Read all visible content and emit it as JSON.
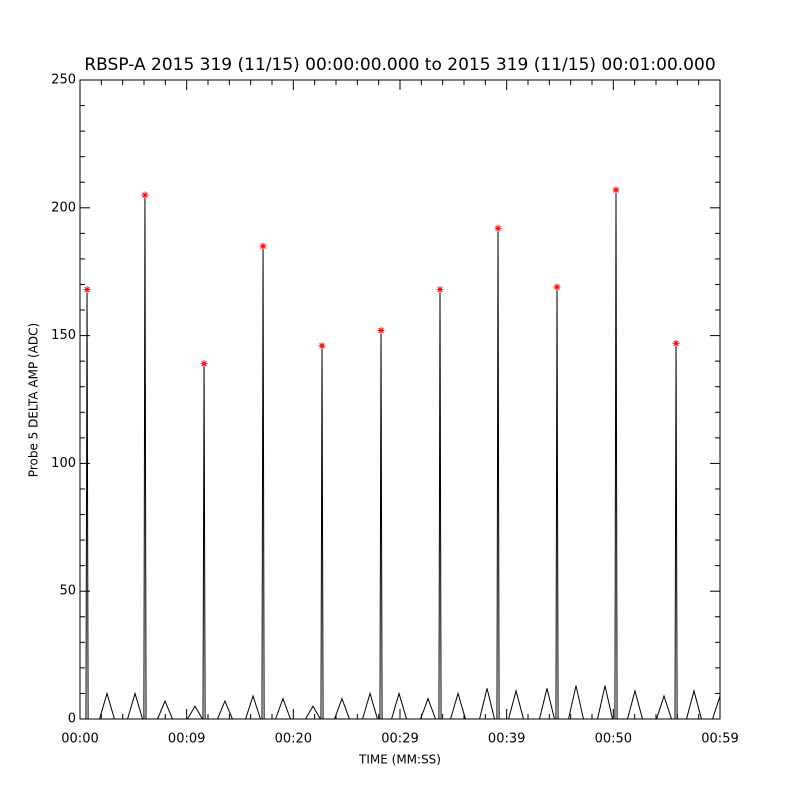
{
  "chart_data": {
    "type": "line",
    "title": "RBSP-A 2015 319 (11/15) 00:00:00.000 to 2015 319 (11/15) 00:01:00.000",
    "xlabel": "TIME (MM:SS)",
    "ylabel": "Probe 5 DELTA AMP (ADC)",
    "xlim": [
      0,
      60
    ],
    "ylim": [
      0,
      250
    ],
    "xticks": [
      {
        "value": 0,
        "label": "00:00"
      },
      {
        "value": 10,
        "label": "00:09"
      },
      {
        "value": 20,
        "label": "00:20"
      },
      {
        "value": 30,
        "label": "00:29"
      },
      {
        "value": 40,
        "label": "00:39"
      },
      {
        "value": 50,
        "label": "00:50"
      },
      {
        "value": 60,
        "label": "00:59"
      }
    ],
    "yticks": [
      0,
      50,
      100,
      150,
      200,
      250
    ],
    "xminorticks": [
      2,
      4,
      6,
      8,
      12,
      14,
      16,
      18,
      22,
      24,
      26,
      28,
      32,
      34,
      36,
      38,
      42,
      44,
      46,
      48,
      52,
      54,
      56,
      58
    ],
    "yminorticks": [
      10,
      20,
      30,
      40,
      60,
      70,
      80,
      90,
      110,
      120,
      130,
      140,
      160,
      170,
      180,
      190,
      210,
      220,
      230,
      240
    ],
    "series": [
      {
        "color": "#000000",
        "x": [
          0,
          0.56,
          0.66,
          0.76,
          1.83,
          2.53,
          3.23,
          4.46,
          5.16,
          5.86,
          5.99,
          6.09,
          6.19,
          7.27,
          7.97,
          8.67,
          10.08,
          10.78,
          11.48,
          11.53,
          11.63,
          11.73,
          12.89,
          13.59,
          14.29,
          15.52,
          16.22,
          16.92,
          17.06,
          17.16,
          17.26,
          18.33,
          19.03,
          19.73,
          21.14,
          21.84,
          22.54,
          22.59,
          22.69,
          22.79,
          23.86,
          24.56,
          25.26,
          26.49,
          27.19,
          27.89,
          28.12,
          28.22,
          28.32,
          29.21,
          29.91,
          30.61,
          31.93,
          32.63,
          33.33,
          33.65,
          33.75,
          33.85,
          34.74,
          35.44,
          36.14,
          37.46,
          38.16,
          38.86,
          39.09,
          39.19,
          39.29,
          40.18,
          40.88,
          41.58,
          43.08,
          43.78,
          44.48,
          44.62,
          44.72,
          44.82,
          45.8,
          46.5,
          47.2,
          48.52,
          49.22,
          49.92,
          50.15,
          50.25,
          50.35,
          51.33,
          52.03,
          52.73,
          54.05,
          54.75,
          55.45,
          55.78,
          55.88,
          55.98,
          56.86,
          57.56,
          58.26,
          59.3,
          60
        ],
        "values": [
          0,
          0,
          168,
          0,
          0,
          10,
          0,
          0,
          10,
          0,
          0,
          205,
          0,
          0,
          7,
          0,
          0,
          5,
          0,
          0,
          139,
          0,
          0,
          7,
          0,
          0,
          9,
          0,
          0,
          185,
          0,
          0,
          8,
          0,
          0,
          5,
          0,
          0,
          146,
          0,
          0,
          8,
          0,
          0,
          10,
          0,
          0,
          152,
          0,
          0,
          10,
          0,
          0,
          8,
          0,
          0,
          168,
          0,
          0,
          10,
          0,
          0,
          12,
          0,
          0,
          192,
          0,
          0,
          11,
          0,
          0,
          12,
          0,
          0,
          169,
          0,
          0,
          13,
          0,
          0,
          13,
          0,
          0,
          207,
          0,
          0,
          11,
          0,
          0,
          9,
          0,
          0,
          147,
          0,
          0,
          11,
          0,
          0,
          9
        ]
      },
      {
        "color": "#ff0000",
        "marker": "asterisk",
        "x": [
          0.66,
          6.09,
          11.63,
          17.16,
          22.69,
          28.22,
          33.75,
          39.19,
          44.72,
          50.25,
          55.88
        ],
        "values": [
          168,
          205,
          139,
          185,
          146,
          152,
          168,
          192,
          169,
          207,
          147
        ]
      }
    ]
  }
}
